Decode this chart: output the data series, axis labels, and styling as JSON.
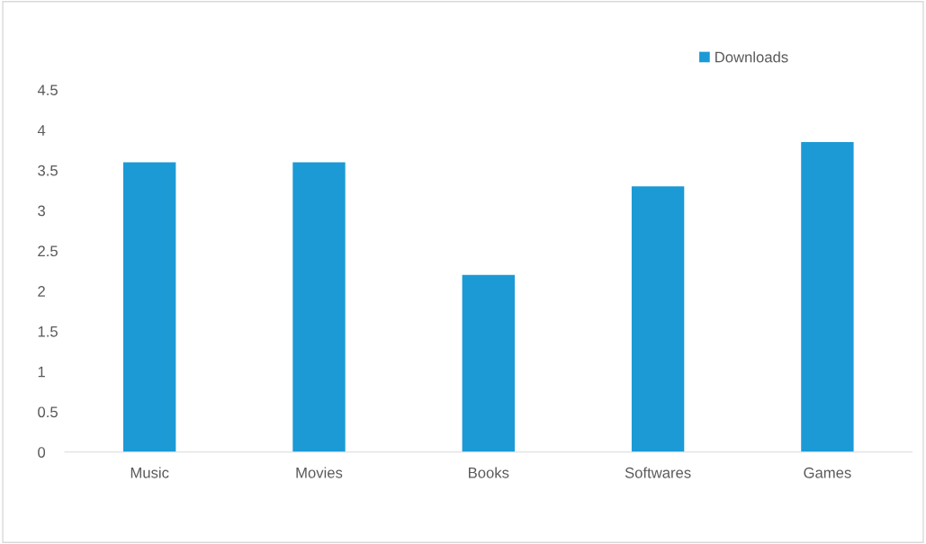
{
  "chart_data": {
    "type": "bar",
    "categories": [
      "Music",
      "Movies",
      "Books",
      "Softwares",
      "Games"
    ],
    "series": [
      {
        "name": "Downloads",
        "color": "#1b9ad6",
        "values": [
          3.6,
          3.6,
          2.2,
          3.3,
          3.85
        ]
      }
    ],
    "ylim": [
      0,
      4.5
    ],
    "yticks": [
      0,
      0.5,
      1,
      1.5,
      2,
      2.5,
      3,
      3.5,
      4,
      4.5
    ],
    "grid": false,
    "legend": "top right"
  }
}
